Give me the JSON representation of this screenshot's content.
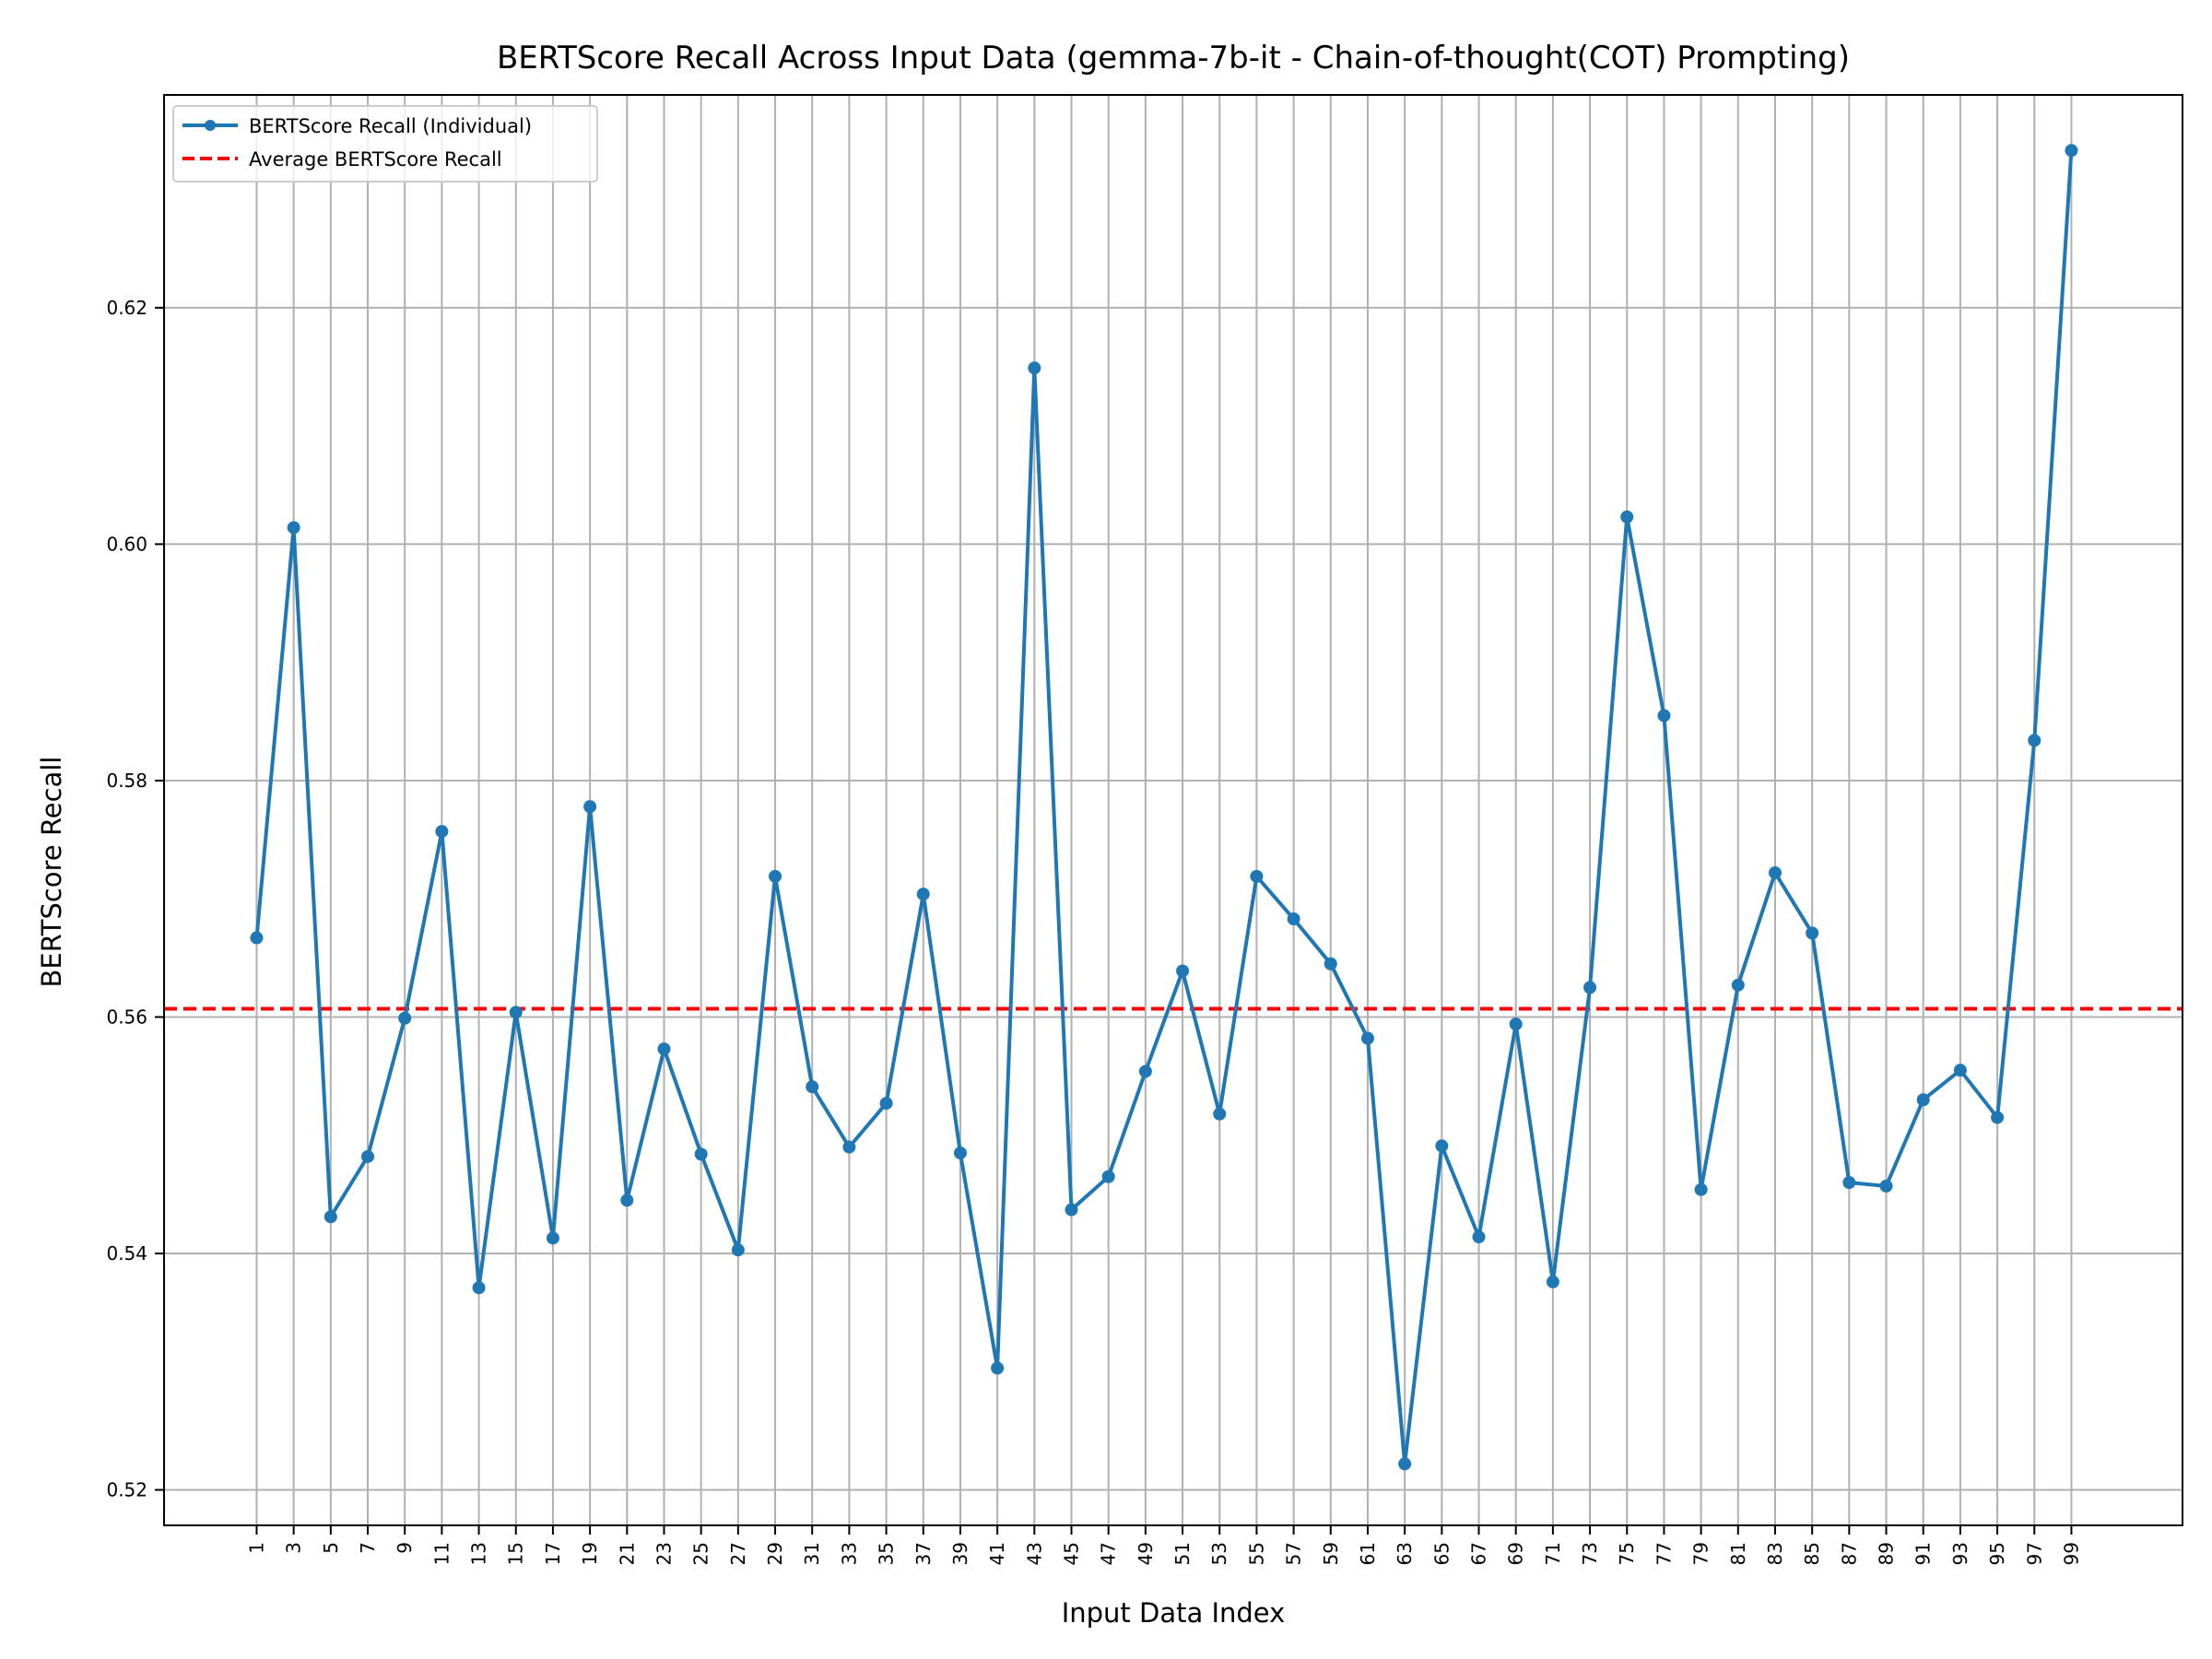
{
  "chart_data": {
    "type": "line",
    "title": "BERTScore Recall Across Input Data (gemma-7b-it - Chain-of-thought(COT) Prompting)",
    "xlabel": "Input Data Index",
    "ylabel": "BERTScore Recall",
    "x": [
      1,
      3,
      5,
      7,
      9,
      11,
      13,
      15,
      17,
      19,
      21,
      23,
      25,
      27,
      29,
      31,
      33,
      35,
      37,
      39,
      41,
      43,
      45,
      47,
      49,
      51,
      53,
      55,
      57,
      59,
      61,
      63,
      65,
      67,
      69,
      71,
      73,
      75,
      77,
      79,
      81,
      83,
      85,
      87,
      89,
      91,
      93,
      95,
      97,
      99
    ],
    "xticks": [
      1,
      3,
      5,
      7,
      9,
      11,
      13,
      15,
      17,
      19,
      21,
      23,
      25,
      27,
      29,
      31,
      33,
      35,
      37,
      39,
      41,
      43,
      45,
      47,
      49,
      51,
      53,
      55,
      57,
      59,
      61,
      63,
      65,
      67,
      69,
      71,
      73,
      75,
      77,
      79,
      81,
      83,
      85,
      87,
      89,
      91,
      93,
      95,
      97,
      99
    ],
    "yticks": [
      0.52,
      0.54,
      0.56,
      0.58,
      0.6,
      0.62
    ],
    "ytick_labels": [
      "0.52",
      "0.54",
      "0.56",
      "0.58",
      "0.60",
      "0.62"
    ],
    "xlim": [
      -4,
      105
    ],
    "ylim": [
      0.517,
      0.638
    ],
    "grid": true,
    "legend_position": "top-left",
    "series": [
      {
        "name": "BERTScore Recall (Individual)",
        "color": "#1f77b4",
        "style": "solid-with-markers",
        "values": [
          0.5667,
          0.6014,
          0.5431,
          0.5482,
          0.5599,
          0.5757,
          0.5371,
          0.5604,
          0.5413,
          0.5778,
          0.5445,
          0.5573,
          0.5484,
          0.5403,
          0.5719,
          0.5541,
          0.549,
          0.5527,
          0.5704,
          0.5485,
          0.5303,
          0.6149,
          0.5437,
          0.5465,
          0.5554,
          0.5639,
          0.5518,
          0.5719,
          0.5683,
          0.5645,
          0.5582,
          0.5222,
          0.5491,
          0.5414,
          0.5594,
          0.5376,
          0.5625,
          0.6023,
          0.5855,
          0.5454,
          0.5627,
          0.5722,
          0.5671,
          0.546,
          0.5457,
          0.553,
          0.5555,
          0.5515,
          0.5834,
          0.6333
        ]
      },
      {
        "name": "Average BERTScore Recall",
        "color": "#ff0000",
        "style": "dashed",
        "value": 0.5607
      }
    ]
  }
}
